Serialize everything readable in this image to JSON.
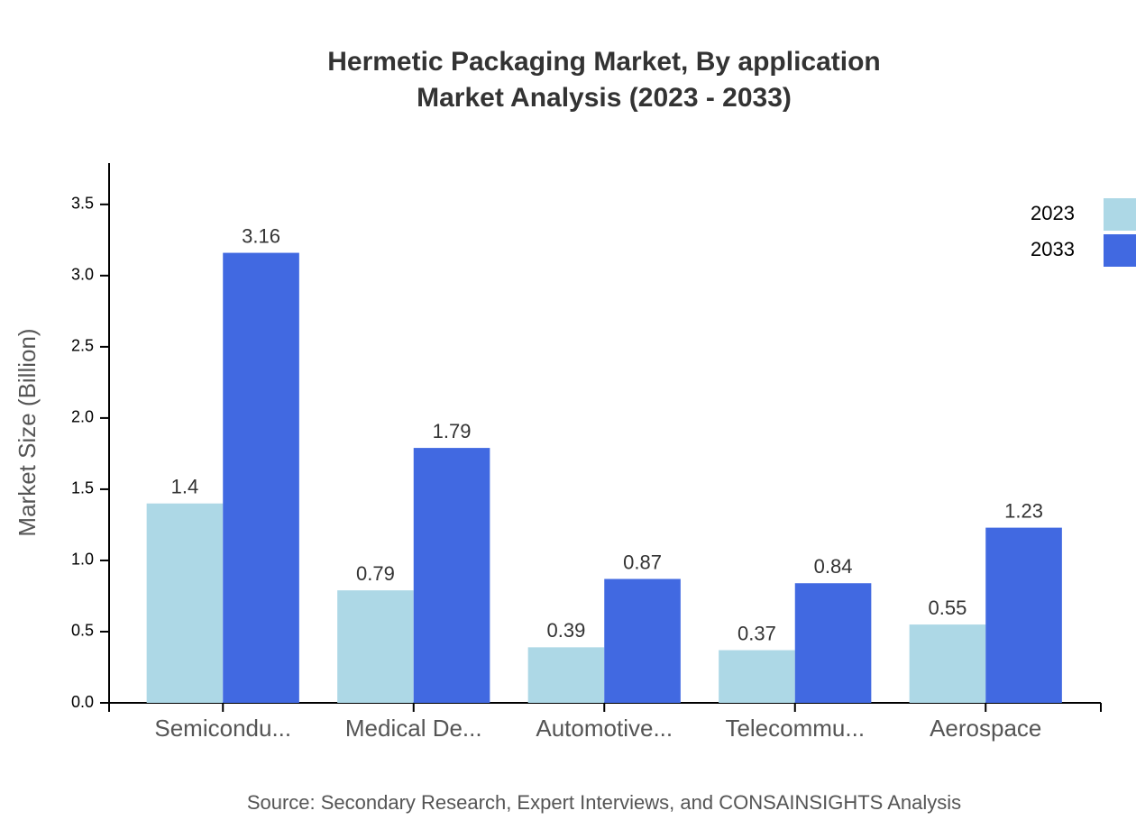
{
  "chart_data": {
    "type": "bar",
    "title": "Hermetic Packaging Market, By application",
    "subtitle": "Market Analysis (2023 - 2033)",
    "y_label": "Market Size (Billion)",
    "source": "Source: Secondary Research, Expert Interviews, and CONSAINSIGHTS Analysis",
    "categories": [
      "Semicondu...",
      "Medical De...",
      "Automotive...",
      "Telecommu...",
      "Aerospace"
    ],
    "series": [
      {
        "name": "2023",
        "color": "#add8e6",
        "values": [
          1.4,
          0.79,
          0.39,
          0.37,
          0.55
        ]
      },
      {
        "name": "2033",
        "color": "#4169e1",
        "values": [
          3.16,
          1.79,
          0.87,
          0.84,
          1.23
        ]
      }
    ],
    "ylim": [
      0,
      3.79
    ],
    "yticks": [
      {
        "value": 0,
        "label": "0.0"
      },
      0.5,
      {
        "value": 1,
        "label": "1.0"
      },
      1.5,
      {
        "value": 2,
        "label": "2.0"
      },
      2.5,
      {
        "value": 3,
        "label": "3.0"
      },
      3.5
    ],
    "legend": "top-right"
  }
}
